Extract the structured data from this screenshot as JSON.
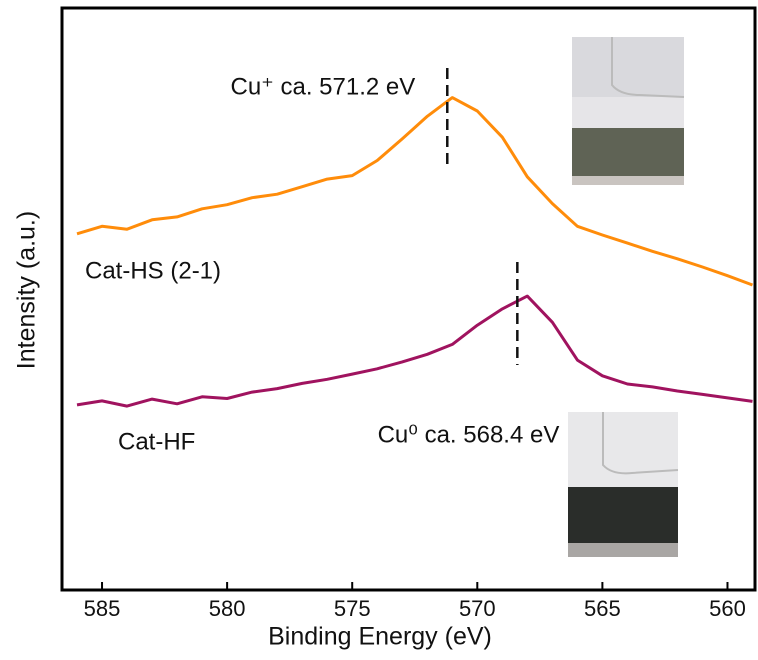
{
  "chart_data": {
    "type": "line",
    "x_label": "Binding Energy (eV)",
    "y_label": "Intensity (a.u.)",
    "x": [
      586,
      585,
      584,
      583,
      582,
      581,
      580,
      579,
      578,
      577,
      576,
      575,
      574,
      573,
      572,
      571,
      570,
      569,
      568,
      567,
      566,
      565,
      564,
      563,
      562,
      561,
      560,
      559
    ],
    "series": [
      {
        "name": "Cat-HS (2-1)",
        "color": "#ff8c0a",
        "values": [
          61.2,
          62.5,
          62.0,
          63.6,
          64.1,
          65.5,
          66.2,
          67.4,
          68.0,
          69.3,
          70.6,
          71.2,
          73.8,
          77.5,
          81.4,
          84.6,
          82.3,
          77.8,
          71.0,
          66.4,
          62.5,
          61.0,
          59.6,
          58.2,
          56.9,
          55.5,
          54.0,
          52.4
        ]
      },
      {
        "name": "Cat-HF",
        "color": "#a0135f",
        "values": [
          31.8,
          32.5,
          31.6,
          32.8,
          32.0,
          33.2,
          32.9,
          34.0,
          34.6,
          35.5,
          36.2,
          37.1,
          38.0,
          39.2,
          40.5,
          42.2,
          45.5,
          48.3,
          50.5,
          46.0,
          39.5,
          36.8,
          35.4,
          34.9,
          34.2,
          33.6,
          33.0,
          32.4
        ]
      }
    ],
    "annotations": [
      {
        "text": "Cu⁺ ca. 571.2 eV",
        "x": 571.2
      },
      {
        "text": "Cu⁰ ca. 568.4 eV",
        "x": 568.4
      }
    ],
    "xlim": [
      586.6,
      558.9
    ],
    "ylim": [
      0,
      100
    ],
    "xticks": [
      585,
      580,
      575,
      570,
      565,
      560
    ]
  }
}
